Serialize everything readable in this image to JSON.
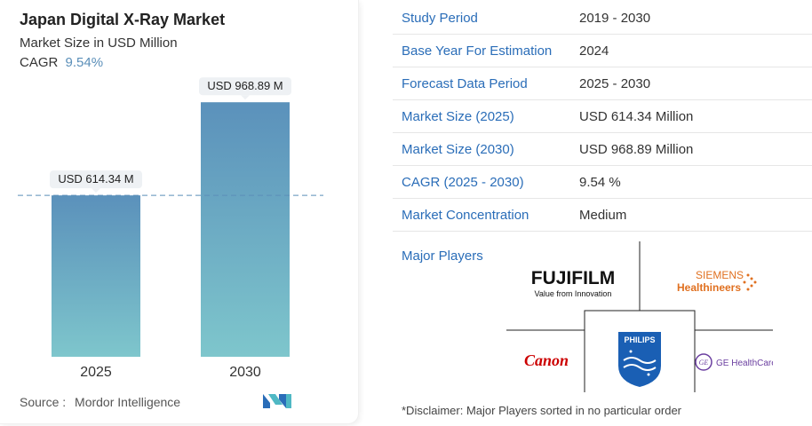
{
  "chart_data": {
    "type": "bar",
    "title": "Japan Digital X-Ray Market",
    "subtitle": "Market Size in USD Million",
    "cagr_label": "CAGR",
    "cagr_value": "9.54%",
    "categories": [
      "2025",
      "2030"
    ],
    "values": [
      614.34,
      968.89
    ],
    "data_labels": [
      "USD 614.34 M",
      "USD 968.89 M"
    ],
    "ylim": [
      0,
      1000
    ],
    "grid": false,
    "colors": {
      "bar_top": "#5b91bb",
      "bar_bottom": "#7ec6cc",
      "dashed_line": "#5b8fb9"
    }
  },
  "source": {
    "label": "Source :",
    "name": "Mordor Intelligence"
  },
  "info_table": [
    {
      "label": "Study Period",
      "value": "2019 - 2030"
    },
    {
      "label": "Base Year For Estimation",
      "value": "2024"
    },
    {
      "label": "Forecast Data Period",
      "value": "2025 - 2030"
    },
    {
      "label": "Market Size (2025)",
      "value": "USD 614.34 Million"
    },
    {
      "label": "Market Size (2030)",
      "value": "USD 968.89 Million"
    },
    {
      "label": "CAGR (2025 - 2030)",
      "value": "9.54 %"
    },
    {
      "label": "Market Concentration",
      "value": "Medium"
    }
  ],
  "major_players": {
    "label": "Major Players",
    "logos": [
      {
        "name": "FUJIFILM",
        "tagline": "Value from Innovation",
        "icon": "fujifilm-logo"
      },
      {
        "name": "SIEMENS",
        "tagline": "Healthineers",
        "icon": "siemens-healthineers-logo"
      },
      {
        "name": "Canon",
        "icon": "canon-logo"
      },
      {
        "name": "PHILIPS",
        "icon": "philips-logo"
      },
      {
        "name": "GE HealthCare",
        "icon": "ge-healthcare-logo"
      }
    ]
  },
  "disclaimer": "*Disclaimer: Major Players sorted in no particular order"
}
